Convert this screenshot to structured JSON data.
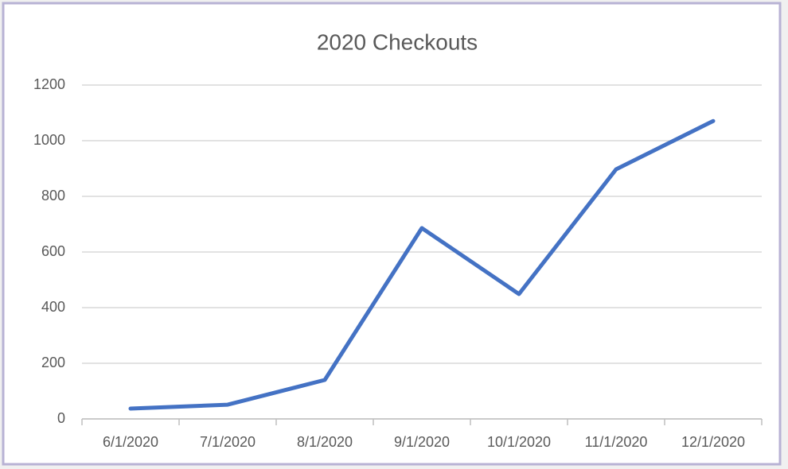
{
  "chart_data": {
    "type": "line",
    "title": "2020 Checkouts",
    "categories": [
      "6/1/2020",
      "7/1/2020",
      "8/1/2020",
      "9/1/2020",
      "10/1/2020",
      "11/1/2020",
      "12/1/2020"
    ],
    "values": [
      37,
      51,
      140,
      686,
      449,
      897,
      1071
    ],
    "color": "#4472c4",
    "ylim": [
      0,
      1200
    ],
    "yticks": [
      0,
      200,
      400,
      600,
      800,
      1000,
      1200
    ],
    "grid": true
  }
}
